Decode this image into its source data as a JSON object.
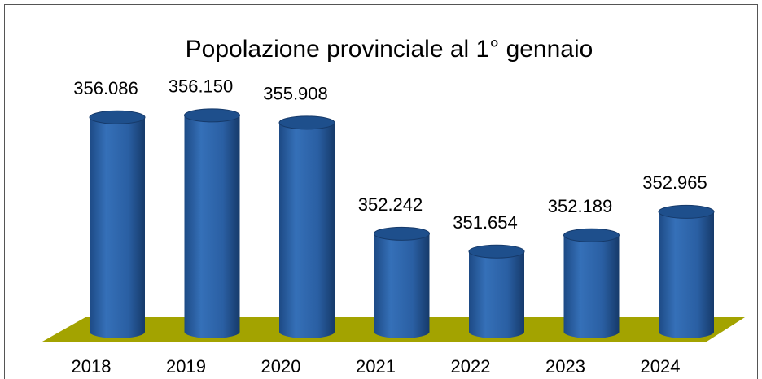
{
  "chart_data": {
    "type": "bar3d",
    "title": "Popolazione provinciale al 1° gennaio",
    "categories": [
      "2018",
      "2019",
      "2020",
      "2021",
      "2022",
      "2023",
      "2024"
    ],
    "values": [
      356086,
      356150,
      355908,
      352242,
      351654,
      352189,
      352965
    ],
    "value_labels": [
      "356.086",
      "356.150",
      "355.908",
      "352.242",
      "351.654",
      "352.189",
      "352.965"
    ],
    "color": "#2e64a8",
    "floor_color": "#a3a300",
    "ylim": [
      349000,
      358000
    ]
  }
}
